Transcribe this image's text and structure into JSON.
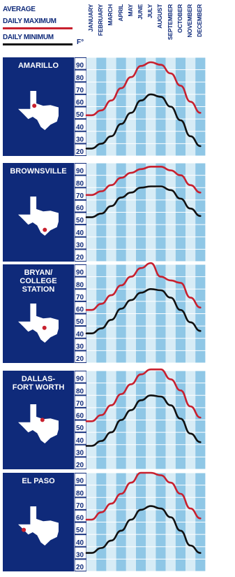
{
  "legend": {
    "title": "AVERAGE",
    "max_label": "DAILY MAXIMUM",
    "min_label": "DAILY MINIMUM",
    "unit": "F°",
    "colors": {
      "max": "#c8202e",
      "min": "#111111",
      "panel": "#0f2a7a",
      "grid_light": "#d7ecf6",
      "grid_dark": "#8fc7e6"
    }
  },
  "chart_data": {
    "type": "line",
    "categories": [
      "JANUARY",
      "FEBRUARY",
      "MARCH",
      "APRIL",
      "MAY",
      "JUNE",
      "JULY",
      "AUGUST",
      "SEPTEMBER",
      "OCTOBER",
      "NOVEMBER",
      "DECEMBER"
    ],
    "ylim": [
      20,
      90
    ],
    "yticks": [
      90,
      80,
      70,
      60,
      50,
      40,
      30,
      20
    ],
    "panels": [
      {
        "city": [
          "AMARILLO"
        ],
        "dot": "amarillo",
        "series": [
          {
            "name": "DAILY MAXIMUM",
            "values": [
              48,
              52,
              60,
              70,
              79,
              88,
              91,
              89,
              82,
              72,
              59,
              50
            ]
          },
          {
            "name": "DAILY MINIMUM",
            "values": [
              21,
              25,
              31,
              41,
              50,
              60,
              65,
              63,
              55,
              44,
              31,
              23
            ]
          }
        ]
      },
      {
        "city": [
          "BROWNSVILLE"
        ],
        "dot": "brownsville",
        "series": [
          {
            "name": "DAILY MAXIMUM",
            "values": [
              69,
              72,
              77,
              83,
              87,
              90,
              92,
              92,
              89,
              85,
              77,
              71
            ]
          },
          {
            "name": "DAILY MINIMUM",
            "values": [
              51,
              54,
              60,
              67,
              71,
              75,
              76,
              76,
              73,
              66,
              58,
              52
            ]
          }
        ]
      },
      {
        "city": [
          "BRYAN/",
          "COLLEGE",
          "STATION"
        ],
        "dot": "bryan",
        "series": [
          {
            "name": "DAILY MAXIMUM",
            "values": [
              58,
              63,
              70,
              78,
              85,
              92,
              96,
              85,
              82,
              80,
              68,
              60
            ]
          },
          {
            "name": "DAILY MINIMUM",
            "values": [
              39,
              43,
              50,
              59,
              66,
              72,
              75,
              74,
              68,
              58,
              48,
              41
            ]
          }
        ]
      },
      {
        "city": [
          "DALLAS-",
          "FORT WORTH"
        ],
        "dot": "dallas",
        "series": [
          {
            "name": "DAILY MAXIMUM",
            "values": [
              54,
              59,
              67,
              76,
              84,
              92,
              96,
              96,
              88,
              79,
              66,
              57
            ]
          },
          {
            "name": "DAILY MINIMUM",
            "values": [
              34,
              38,
              45,
              55,
              63,
              71,
              75,
              74,
              67,
              56,
              44,
              37
            ]
          }
        ]
      },
      {
        "city": [
          "EL PASO"
        ],
        "dot": "elpaso",
        "series": [
          {
            "name": "DAILY MAXIMUM",
            "values": [
              57,
              63,
              70,
              78,
              87,
              95,
              95,
              93,
              87,
              78,
              66,
              58
            ]
          },
          {
            "name": "DAILY MINIMUM",
            "values": [
              30,
              34,
              40,
              48,
              57,
              65,
              68,
              66,
              59,
              48,
              36,
              30
            ]
          }
        ]
      }
    ]
  }
}
